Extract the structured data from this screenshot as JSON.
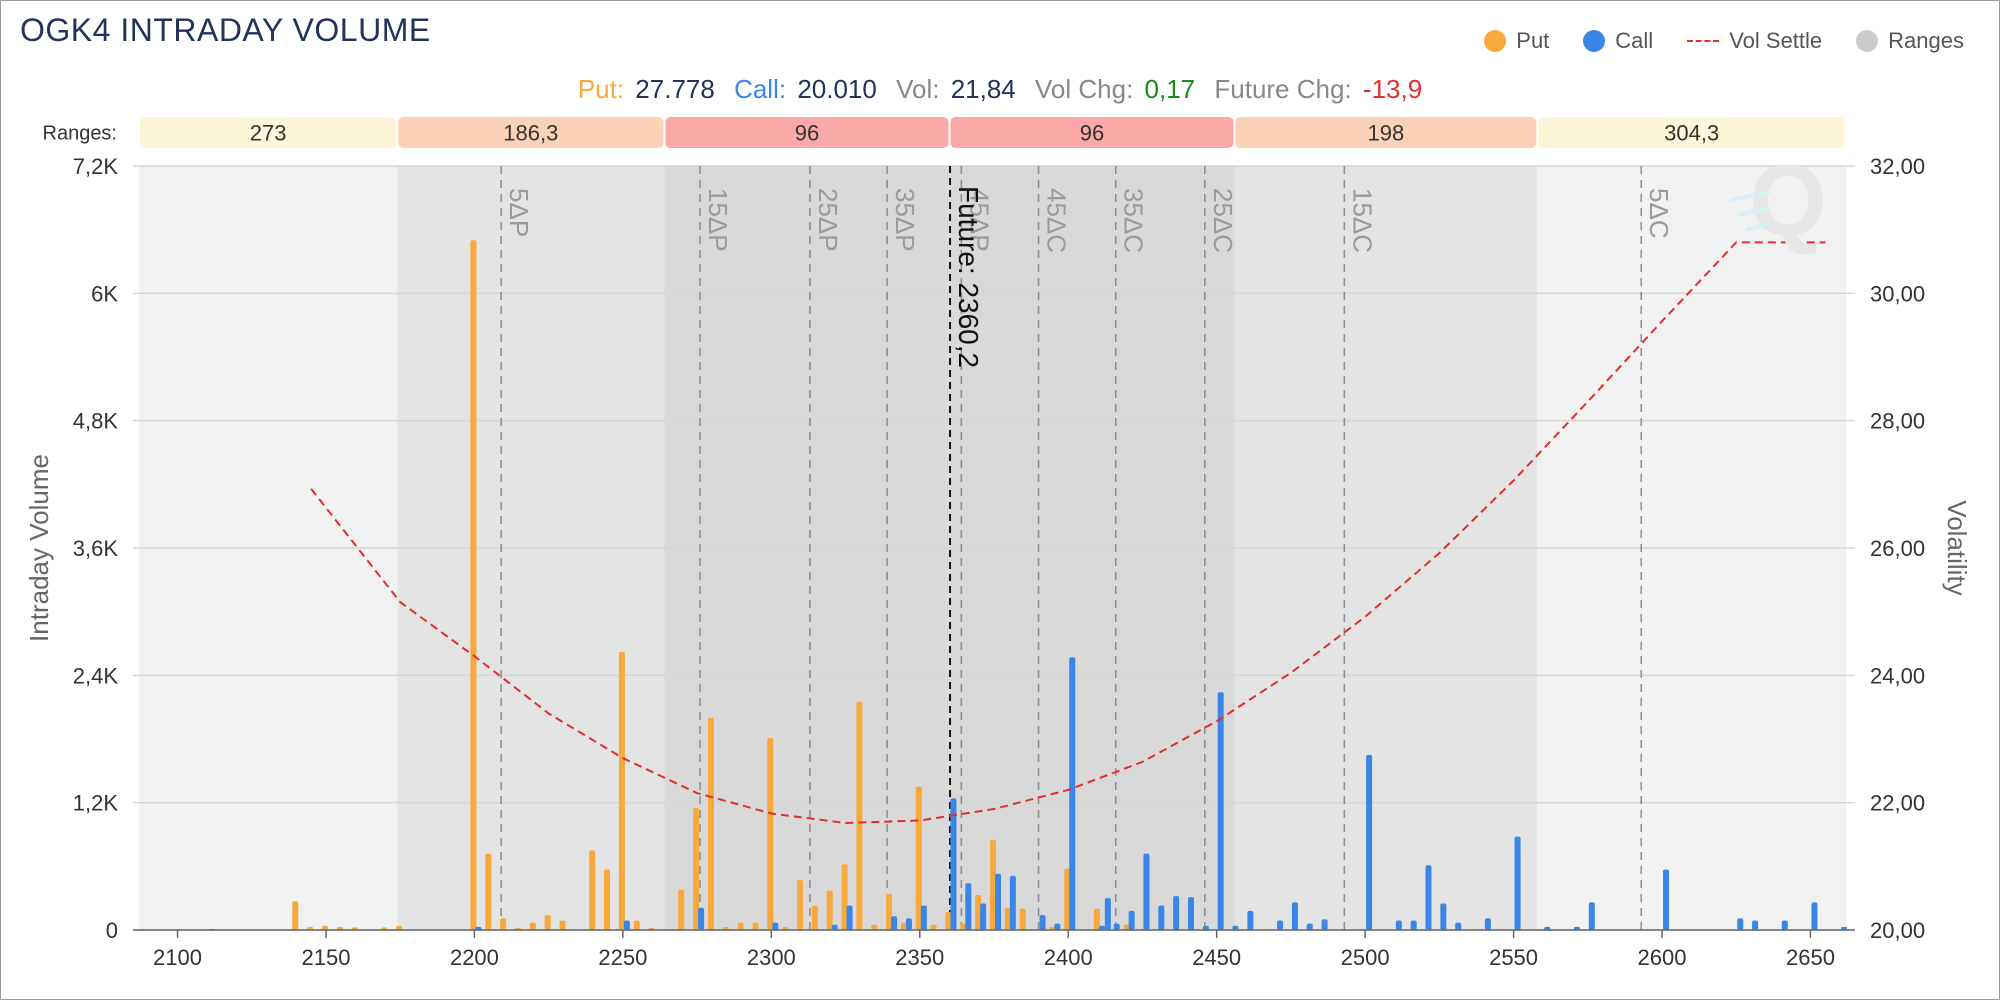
{
  "title": "OGK4 INTRADAY VOLUME",
  "legend": [
    {
      "label": "Put",
      "color": "#f9a93b",
      "kind": "dot"
    },
    {
      "label": "Call",
      "color": "#3a86e8",
      "kind": "dot"
    },
    {
      "label": "Vol Settle",
      "color": "#e0302a",
      "kind": "dash"
    },
    {
      "label": "Ranges",
      "color": "#c8c8c8",
      "kind": "dot"
    }
  ],
  "stats": {
    "put_label": "Put:",
    "put_value": "27.778",
    "call_label": "Call:",
    "call_value": "20.010",
    "vol_label": "Vol:",
    "vol_value": "21,84",
    "volchg_label": "Vol Chg:",
    "volchg_value": "0,17",
    "futchg_label": "Future Chg:",
    "futchg_value": "-13,9"
  },
  "colors": {
    "put": "#f9a93b",
    "call": "#3a86e8",
    "vol": "#e0302a",
    "positive": "#1a8a1a",
    "negative": "#e0302a",
    "label": "#f9a93b",
    "callLabel": "#3a86e8",
    "navy": "#22345a"
  },
  "chart_data": {
    "type": "bar",
    "xlabel": "",
    "ylabel": "Intraday Volume",
    "y2label": "Volatility",
    "xlim": [
      2085,
      2665
    ],
    "ylim": [
      0,
      7200
    ],
    "y2lim": [
      20,
      32
    ],
    "x_ticks": [
      "2100",
      "2150",
      "2200",
      "2250",
      "2300",
      "2350",
      "2400",
      "2450",
      "2500",
      "2550",
      "2600",
      "2650"
    ],
    "y_ticks": [
      "0",
      "1,2K",
      "2,4K",
      "3,6K",
      "4,8K",
      "6K",
      "7,2K"
    ],
    "y2_ticks": [
      "20,00",
      "22,00",
      "24,00",
      "26,00",
      "28,00",
      "30,00",
      "32,00"
    ],
    "ranges_label": "Ranges:",
    "ranges": [
      {
        "from": 2087,
        "to": 2174,
        "label": "273",
        "color": "#fdf5d8",
        "shade": "#f1f1f1"
      },
      {
        "from": 2174,
        "to": 2264,
        "label": "186,3",
        "color": "#fcd2b7",
        "shade": "#e4e4e4"
      },
      {
        "from": 2264,
        "to": 2360,
        "label": "96",
        "color": "#fba8a8",
        "shade": "#d9d9d9"
      },
      {
        "from": 2360,
        "to": 2456,
        "label": "96",
        "color": "#fba8a8",
        "shade": "#d9d9d9"
      },
      {
        "from": 2456,
        "to": 2558,
        "label": "198",
        "color": "#fcd2b7",
        "shade": "#e4e4e4"
      },
      {
        "from": 2558,
        "to": 2662,
        "label": "304,3",
        "color": "#fdf5d8",
        "shade": "#f1f1f1"
      }
    ],
    "delta_lines": [
      {
        "x": 2209,
        "label": "5ΔP"
      },
      {
        "x": 2276,
        "label": "15ΔP"
      },
      {
        "x": 2313,
        "label": "25ΔP"
      },
      {
        "x": 2339,
        "label": "35ΔP"
      },
      {
        "x": 2364,
        "label": "45ΔP"
      },
      {
        "x": 2390,
        "label": "45ΔC"
      },
      {
        "x": 2416,
        "label": "35ΔC"
      },
      {
        "x": 2446,
        "label": "25ΔC"
      },
      {
        "x": 2493,
        "label": "15ΔC"
      },
      {
        "x": 2593,
        "label": "5ΔC"
      }
    ],
    "future": {
      "x": 2360.2,
      "label": "Future: 2360,2"
    },
    "series": [
      {
        "name": "Put",
        "values": [
          [
            2140,
            270
          ],
          [
            2145,
            30
          ],
          [
            2150,
            40
          ],
          [
            2155,
            30
          ],
          [
            2160,
            25
          ],
          [
            2170,
            25
          ],
          [
            2175,
            40
          ],
          [
            2200,
            6500
          ],
          [
            2205,
            720
          ],
          [
            2210,
            110
          ],
          [
            2215,
            20
          ],
          [
            2220,
            70
          ],
          [
            2225,
            140
          ],
          [
            2230,
            90
          ],
          [
            2240,
            750
          ],
          [
            2245,
            570
          ],
          [
            2250,
            2620
          ],
          [
            2255,
            90
          ],
          [
            2260,
            20
          ],
          [
            2270,
            380
          ],
          [
            2275,
            1150
          ],
          [
            2280,
            2000
          ],
          [
            2285,
            30
          ],
          [
            2290,
            70
          ],
          [
            2295,
            70
          ],
          [
            2300,
            1810
          ],
          [
            2305,
            30
          ],
          [
            2310,
            470
          ],
          [
            2315,
            230
          ],
          [
            2320,
            370
          ],
          [
            2325,
            620
          ],
          [
            2330,
            2150
          ],
          [
            2335,
            50
          ],
          [
            2340,
            340
          ],
          [
            2345,
            70
          ],
          [
            2350,
            1350
          ],
          [
            2355,
            50
          ],
          [
            2360,
            170
          ],
          [
            2365,
            60
          ],
          [
            2370,
            330
          ],
          [
            2375,
            850
          ],
          [
            2380,
            210
          ],
          [
            2385,
            200
          ],
          [
            2395,
            30
          ],
          [
            2400,
            580
          ],
          [
            2410,
            200
          ],
          [
            2420,
            50
          ]
        ]
      },
      {
        "name": "Call",
        "values": [
          [
            2110,
            10
          ],
          [
            2200,
            30
          ],
          [
            2250,
            90
          ],
          [
            2275,
            210
          ],
          [
            2300,
            70
          ],
          [
            2320,
            50
          ],
          [
            2325,
            230
          ],
          [
            2340,
            130
          ],
          [
            2345,
            110
          ],
          [
            2350,
            230
          ],
          [
            2360,
            1240
          ],
          [
            2365,
            440
          ],
          [
            2370,
            250
          ],
          [
            2375,
            530
          ],
          [
            2380,
            510
          ],
          [
            2390,
            140
          ],
          [
            2395,
            60
          ],
          [
            2400,
            2570
          ],
          [
            2410,
            40
          ],
          [
            2412,
            300
          ],
          [
            2415,
            60
          ],
          [
            2420,
            180
          ],
          [
            2425,
            720
          ],
          [
            2430,
            230
          ],
          [
            2435,
            320
          ],
          [
            2440,
            310
          ],
          [
            2445,
            40
          ],
          [
            2450,
            2240
          ],
          [
            2455,
            40
          ],
          [
            2460,
            180
          ],
          [
            2470,
            90
          ],
          [
            2475,
            260
          ],
          [
            2480,
            60
          ],
          [
            2485,
            100
          ],
          [
            2500,
            1650
          ],
          [
            2510,
            90
          ],
          [
            2515,
            90
          ],
          [
            2520,
            610
          ],
          [
            2525,
            250
          ],
          [
            2530,
            70
          ],
          [
            2540,
            110
          ],
          [
            2550,
            880
          ],
          [
            2560,
            30
          ],
          [
            2570,
            30
          ],
          [
            2575,
            260
          ],
          [
            2600,
            570
          ],
          [
            2625,
            110
          ],
          [
            2630,
            90
          ],
          [
            2640,
            90
          ],
          [
            2650,
            260
          ],
          [
            2660,
            30
          ]
        ]
      },
      {
        "name": "Vol Settle",
        "values": [
          [
            2145,
            26.93
          ],
          [
            2175,
            25.15
          ],
          [
            2200,
            24.3
          ],
          [
            2225,
            23.4
          ],
          [
            2250,
            22.7
          ],
          [
            2275,
            22.15
          ],
          [
            2300,
            21.83
          ],
          [
            2325,
            21.68
          ],
          [
            2350,
            21.72
          ],
          [
            2375,
            21.9
          ],
          [
            2400,
            22.2
          ],
          [
            2425,
            22.64
          ],
          [
            2450,
            23.28
          ],
          [
            2475,
            24.04
          ],
          [
            2500,
            24.92
          ],
          [
            2525,
            25.92
          ],
          [
            2550,
            27.06
          ],
          [
            2575,
            28.3
          ],
          [
            2600,
            29.56
          ],
          [
            2625,
            30.8
          ],
          [
            2655,
            30.8
          ]
        ]
      }
    ]
  }
}
